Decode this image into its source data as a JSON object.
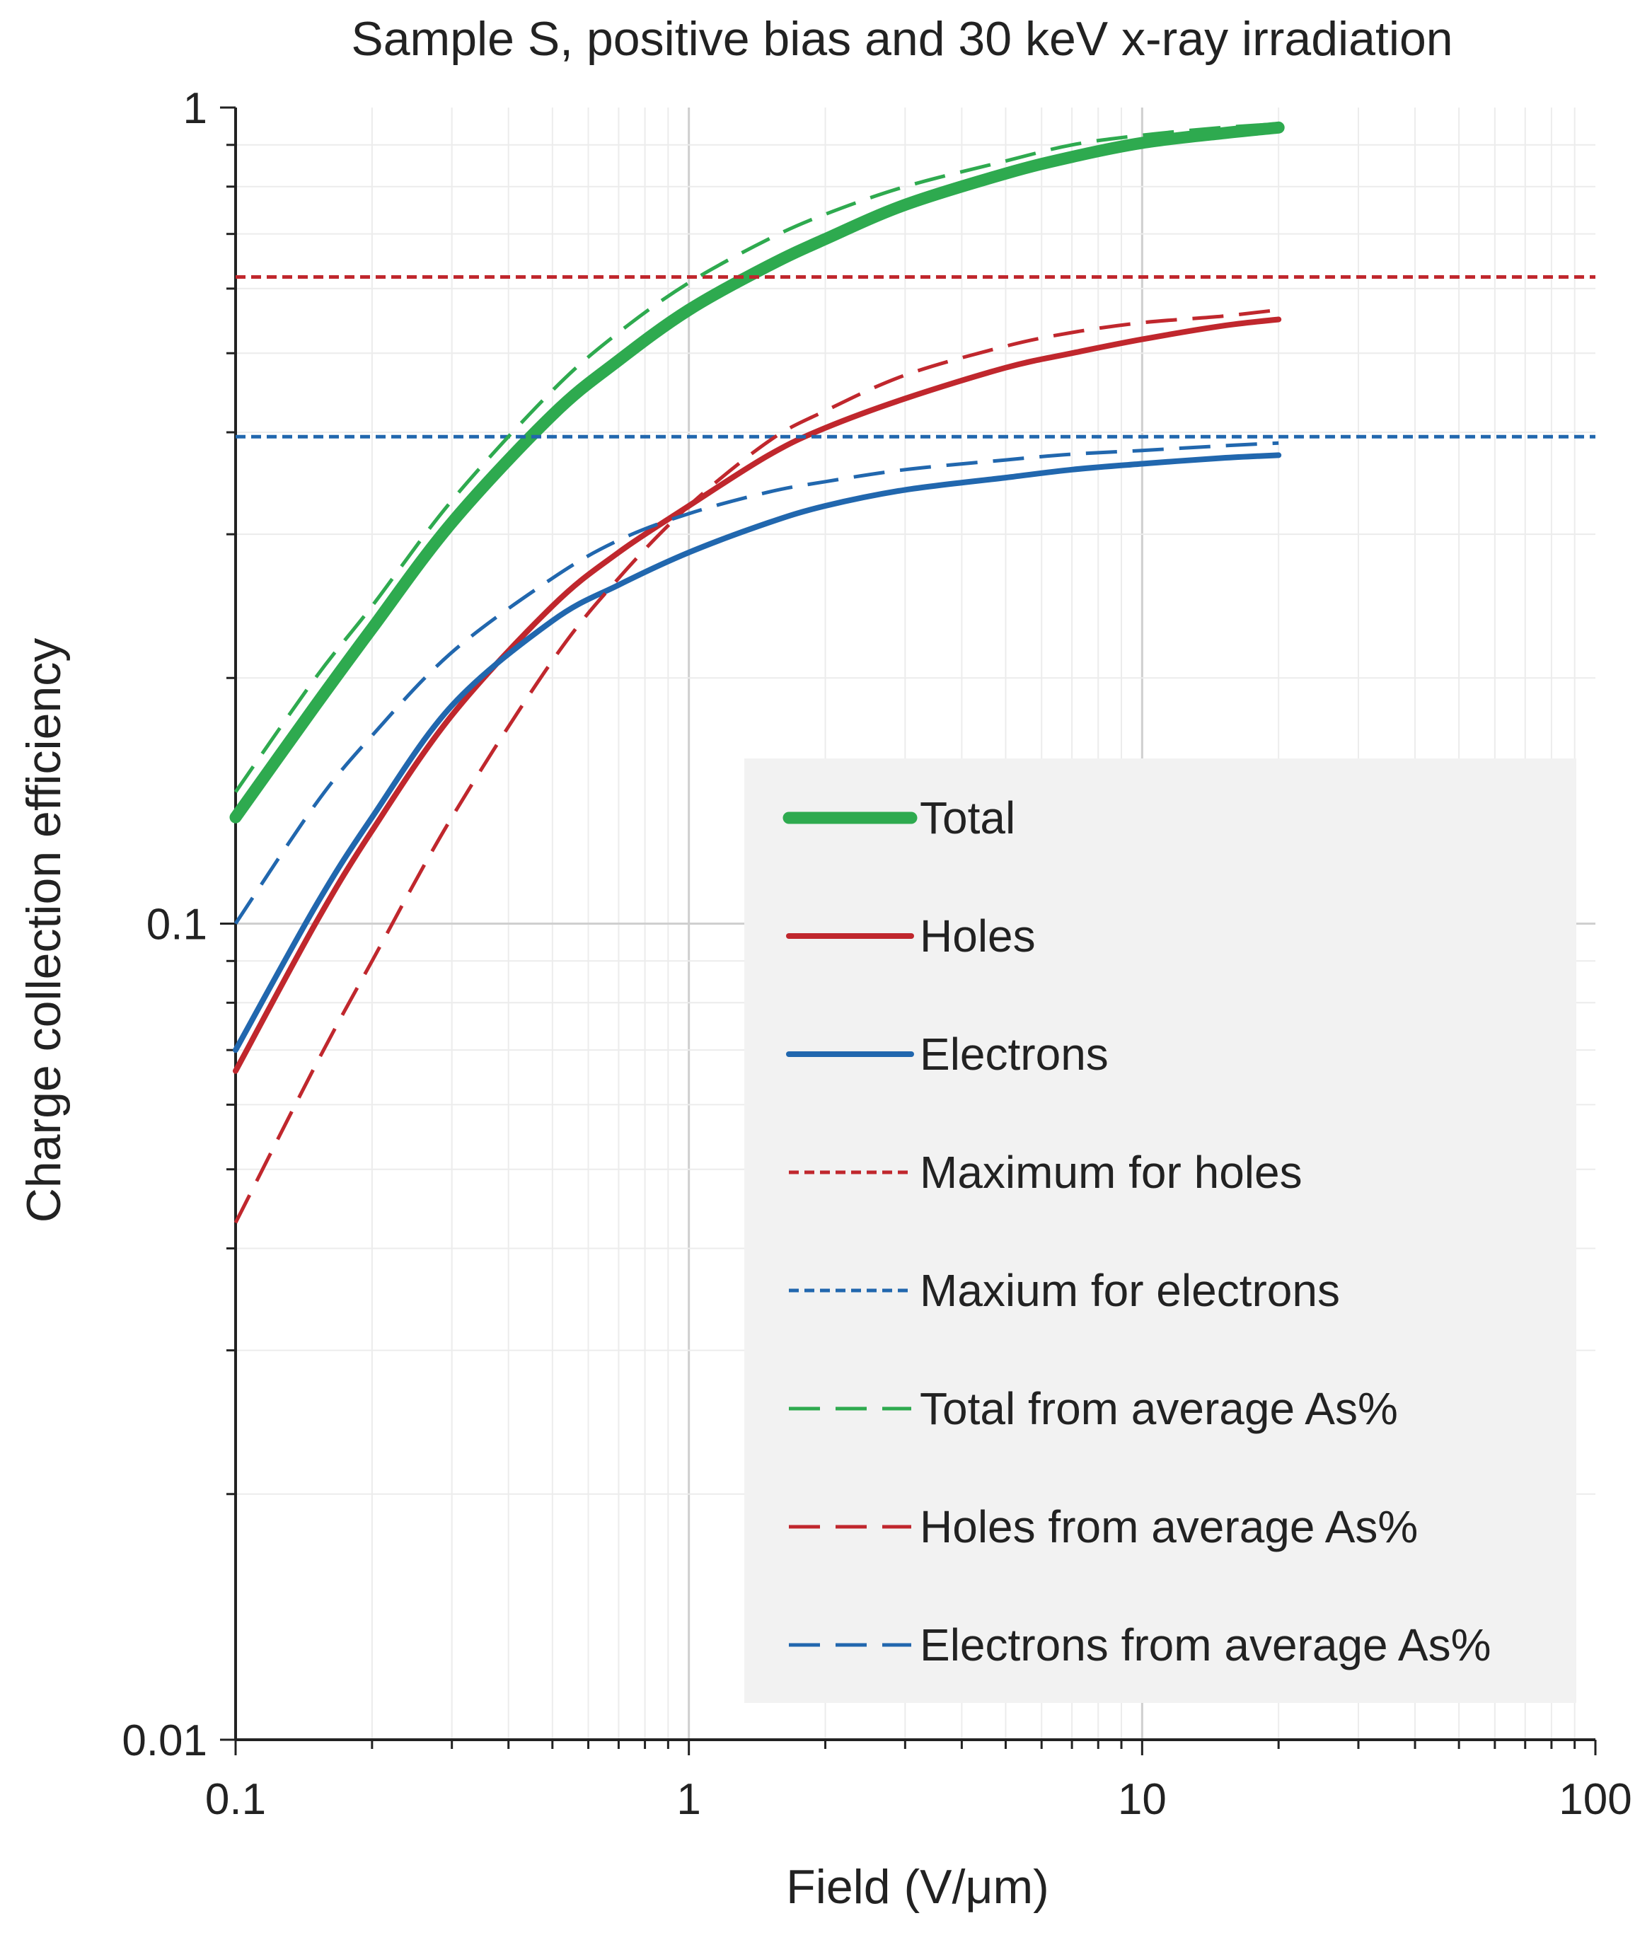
{
  "chart_data": {
    "type": "line",
    "title": "Sample S, positive bias and 30 keV x-ray irradiation",
    "xlabel": "Field (V/μm)",
    "ylabel": "Charge collection efficiency",
    "xscale": "log",
    "yscale": "log",
    "xlim": [
      0.1,
      100
    ],
    "ylim": [
      0.01,
      1
    ],
    "grid": true,
    "legend_position": "bottom-right",
    "x_ticks": [
      {
        "value": 0.1,
        "label": "0.1"
      },
      {
        "value": 1,
        "label": "1"
      },
      {
        "value": 10,
        "label": "10"
      },
      {
        "value": 100,
        "label": "100"
      }
    ],
    "y_ticks": [
      {
        "value": 0.01,
        "label": "0.01"
      },
      {
        "value": 0.1,
        "label": "0.1"
      },
      {
        "value": 1,
        "label": "1"
      }
    ],
    "series": [
      {
        "name": "Total",
        "color": "#2eaa4f",
        "style": "solid-thick",
        "x": [
          0.1,
          0.15,
          0.2,
          0.3,
          0.5,
          0.7,
          1,
          1.5,
          2,
          3,
          5,
          7,
          10,
          15,
          20
        ],
        "y": [
          0.135,
          0.185,
          0.23,
          0.31,
          0.42,
          0.49,
          0.565,
          0.64,
          0.69,
          0.76,
          0.83,
          0.87,
          0.905,
          0.93,
          0.945
        ]
      },
      {
        "name": "Holes",
        "color": "#c0272d",
        "style": "solid",
        "x": [
          0.1,
          0.15,
          0.2,
          0.3,
          0.5,
          0.7,
          1,
          1.5,
          2,
          3,
          5,
          7,
          10,
          15,
          20
        ],
        "y": [
          0.066,
          0.1,
          0.13,
          0.18,
          0.245,
          0.285,
          0.325,
          0.375,
          0.405,
          0.44,
          0.48,
          0.5,
          0.52,
          0.54,
          0.55
        ]
      },
      {
        "name": "Electrons",
        "color": "#2167ae",
        "style": "solid",
        "x": [
          0.1,
          0.15,
          0.2,
          0.3,
          0.5,
          0.7,
          1,
          1.5,
          2,
          3,
          5,
          7,
          10,
          15,
          20
        ],
        "y": [
          0.07,
          0.105,
          0.135,
          0.185,
          0.235,
          0.26,
          0.285,
          0.31,
          0.325,
          0.34,
          0.352,
          0.36,
          0.366,
          0.372,
          0.375
        ]
      },
      {
        "name": "Maximum for holes",
        "color": "#c0272d",
        "style": "dotted",
        "x": [
          0.1,
          100
        ],
        "y": [
          0.62,
          0.62
        ]
      },
      {
        "name": "Maxium for electrons",
        "color": "#2167ae",
        "style": "dotted",
        "x": [
          0.1,
          100
        ],
        "y": [
          0.395,
          0.395
        ]
      },
      {
        "name": "Total from average As%",
        "color": "#2eaa4f",
        "style": "dashed",
        "x": [
          0.1,
          0.15,
          0.2,
          0.3,
          0.5,
          0.7,
          1,
          1.5,
          2,
          3,
          5,
          7,
          10,
          15,
          20
        ],
        "y": [
          0.145,
          0.2,
          0.245,
          0.33,
          0.45,
          0.53,
          0.61,
          0.69,
          0.74,
          0.8,
          0.86,
          0.9,
          0.925,
          0.945,
          0.955
        ]
      },
      {
        "name": "Holes from average As%",
        "color": "#c0272d",
        "style": "dashed",
        "x": [
          0.1,
          0.15,
          0.2,
          0.3,
          0.5,
          0.7,
          1,
          1.5,
          2,
          3,
          5,
          7,
          10,
          15,
          20
        ],
        "y": [
          0.043,
          0.067,
          0.09,
          0.135,
          0.21,
          0.265,
          0.325,
          0.39,
          0.425,
          0.47,
          0.51,
          0.53,
          0.545,
          0.555,
          0.565
        ]
      },
      {
        "name": "Electrons from average As%",
        "color": "#2167ae",
        "style": "dashed",
        "x": [
          0.1,
          0.15,
          0.2,
          0.3,
          0.5,
          0.7,
          1,
          1.5,
          2,
          3,
          5,
          7,
          10,
          15,
          20
        ],
        "y": [
          0.1,
          0.14,
          0.17,
          0.215,
          0.265,
          0.295,
          0.318,
          0.338,
          0.348,
          0.36,
          0.37,
          0.376,
          0.38,
          0.385,
          0.388
        ]
      }
    ]
  }
}
